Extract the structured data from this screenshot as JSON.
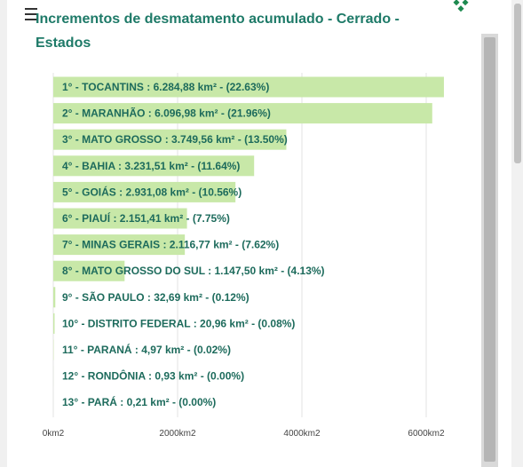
{
  "chart_data": {
    "type": "bar",
    "orientation": "horizontal",
    "title": "Incrementos de desmatamento acumulado - Cerrado - Estados",
    "categories": [
      "1° - TOCANTINS : 6.284,88 km² - (22.63%)",
      "2° - MARANHÃO : 6.096,98 km² - (21.96%)",
      "3° - MATO GROSSO : 3.749,56 km² - (13.50%)",
      "4° - BAHIA : 3.231,51 km² - (11.64%)",
      "5° - GOIÁS : 2.931,08 km² - (10.56%)",
      "6° - PIAUÍ : 2.151,41 km² - (7.75%)",
      "7° - MINAS GERAIS : 2.116,77 km² - (7.62%)",
      "8° - MATO GROSSO DO SUL : 1.147,50 km² - (4.13%)",
      "9° - SÃO PAULO : 32,69 km² - (0.12%)",
      "10° - DISTRITO FEDERAL : 20,96 km² - (0.08%)",
      "11° - PARANÁ : 4,97 km² - (0.02%)",
      "12° - RONDÔNIA : 0,93 km² - (0.00%)",
      "13° - PARÁ : 0,21 km² - (0.00%)"
    ],
    "values": [
      6284.88,
      6096.98,
      3749.56,
      3231.51,
      2931.08,
      2151.41,
      2116.77,
      1147.5,
      32.69,
      20.96,
      4.97,
      0.93,
      0.21
    ],
    "color": "#c8e8a8",
    "xlim": [
      0,
      6300
    ],
    "xticks": [
      {
        "value": 0,
        "label": "0km2"
      },
      {
        "value": 2000,
        "label": "2000km2"
      },
      {
        "value": 4000,
        "label": "4000km2"
      },
      {
        "value": 6000,
        "label": "6000km2"
      }
    ],
    "grid": true
  }
}
